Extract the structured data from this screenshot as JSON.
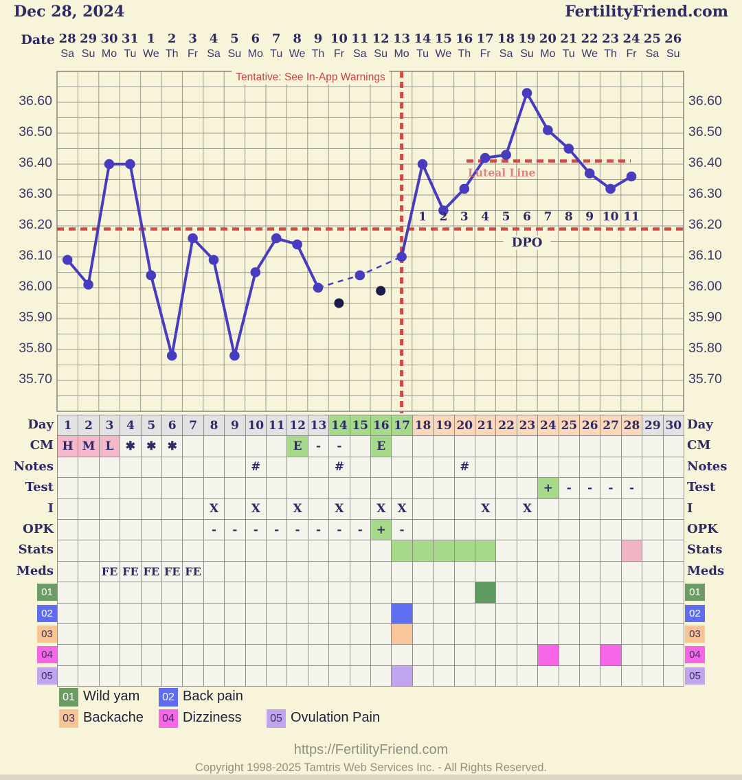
{
  "header": {
    "title": "Dec 28, 2024",
    "brand": "FertilityFriend.com"
  },
  "calendar": {
    "label": "Date",
    "dates": [
      "28",
      "29",
      "30",
      "31",
      "1",
      "2",
      "3",
      "4",
      "5",
      "6",
      "7",
      "8",
      "9",
      "10",
      "11",
      "12",
      "13",
      "14",
      "15",
      "16",
      "17",
      "18",
      "19",
      "20",
      "21",
      "22",
      "23",
      "24",
      "25",
      "26"
    ],
    "weekdays": [
      "Sa",
      "Su",
      "Mo",
      "Tu",
      "We",
      "Th",
      "Fr",
      "Sa",
      "Su",
      "Mo",
      "Tu",
      "We",
      "Th",
      "Fr",
      "Sa",
      "Su",
      "Mo",
      "Tu",
      "We",
      "Th",
      "Fr",
      "Sa",
      "Su",
      "Mo",
      "Tu",
      "We",
      "Th",
      "Fr",
      "Sa",
      "Su"
    ]
  },
  "chart_data": {
    "type": "line",
    "ylim": [
      35.6,
      36.7
    ],
    "y_ticks": [
      "36.60",
      "36.50",
      "36.40",
      "36.30",
      "36.20",
      "36.10",
      "36.00",
      "35.90",
      "35.80",
      "35.70"
    ],
    "x_days_total": 30,
    "days": [
      1,
      2,
      3,
      4,
      5,
      6,
      7,
      8,
      9,
      10,
      11,
      12,
      13,
      14,
      15,
      16,
      17,
      18,
      19,
      20,
      21,
      22,
      23,
      24,
      25,
      26,
      27,
      28
    ],
    "temps": [
      36.09,
      36.01,
      36.4,
      36.4,
      36.04,
      35.78,
      36.16,
      36.09,
      35.78,
      36.05,
      36.16,
      36.14,
      36.0,
      35.95,
      36.04,
      35.99,
      36.1,
      36.4,
      36.25,
      36.32,
      36.42,
      36.43,
      36.63,
      36.51,
      36.45,
      36.37,
      36.32,
      36.36
    ],
    "discarded_days": [
      14,
      16
    ],
    "dashed_connector_days": [
      13,
      15,
      17
    ],
    "coverline_value": 36.19,
    "ovulation_day": 17,
    "luteal_line_value": 36.41,
    "annotations": {
      "tentative": "Tentative: See In-App Warnings",
      "luteal_label": "Luteal Line",
      "dpo_label": "DPO",
      "dpo_numbers": [
        "1",
        "2",
        "3",
        "4",
        "5",
        "6",
        "7",
        "8",
        "9",
        "10",
        "11"
      ],
      "dpo_start_day": 18
    }
  },
  "table": {
    "row_labels": [
      "Day",
      "CM",
      "Notes",
      "Test",
      "I",
      "OPK",
      "Stats",
      "Meds"
    ],
    "day_numbers": [
      "1",
      "2",
      "3",
      "4",
      "5",
      "6",
      "7",
      "8",
      "9",
      "10",
      "11",
      "12",
      "13",
      "14",
      "15",
      "16",
      "17",
      "18",
      "19",
      "20",
      "21",
      "22",
      "23",
      "24",
      "25",
      "26",
      "27",
      "28",
      "29",
      "30"
    ],
    "day_phases": [
      {
        "from": 1,
        "to": 13,
        "phase": "gray"
      },
      {
        "from": 14,
        "to": 17,
        "phase": "green"
      },
      {
        "from": 18,
        "to": 28,
        "phase": "peach"
      },
      {
        "from": 29,
        "to": 30,
        "phase": "gray"
      }
    ],
    "cm": [
      {
        "day": 1,
        "text": "H",
        "bg": "pink"
      },
      {
        "day": 2,
        "text": "M",
        "bg": "pink"
      },
      {
        "day": 3,
        "text": "L",
        "bg": "pink"
      },
      {
        "day": 4,
        "text": "✱"
      },
      {
        "day": 5,
        "text": "✱"
      },
      {
        "day": 6,
        "text": "✱"
      },
      {
        "day": 12,
        "text": "E",
        "bg": "green"
      },
      {
        "day": 13,
        "text": "-"
      },
      {
        "day": 14,
        "text": "-"
      },
      {
        "day": 16,
        "text": "E",
        "bg": "green"
      }
    ],
    "notes": [
      {
        "day": 10,
        "text": "#"
      },
      {
        "day": 14,
        "text": "#"
      },
      {
        "day": 20,
        "text": "#"
      }
    ],
    "test": [
      {
        "day": 24,
        "text": "+",
        "bg": "green"
      },
      {
        "day": 25,
        "text": "-"
      },
      {
        "day": 26,
        "text": "-"
      },
      {
        "day": 27,
        "text": "-"
      },
      {
        "day": 28,
        "text": "-"
      }
    ],
    "intercourse": [
      {
        "day": 8,
        "text": "X"
      },
      {
        "day": 10,
        "text": "X"
      },
      {
        "day": 12,
        "text": "X"
      },
      {
        "day": 14,
        "text": "X"
      },
      {
        "day": 16,
        "text": "X"
      },
      {
        "day": 17,
        "text": "X"
      },
      {
        "day": 21,
        "text": "X"
      },
      {
        "day": 23,
        "text": "X"
      }
    ],
    "opk": [
      {
        "day": 8,
        "text": "-"
      },
      {
        "day": 9,
        "text": "-"
      },
      {
        "day": 10,
        "text": "-"
      },
      {
        "day": 11,
        "text": "-"
      },
      {
        "day": 12,
        "text": "-"
      },
      {
        "day": 13,
        "text": "-"
      },
      {
        "day": 14,
        "text": "-"
      },
      {
        "day": 15,
        "text": "-"
      },
      {
        "day": 16,
        "text": "+",
        "bg": "green"
      },
      {
        "day": 17,
        "text": "-"
      }
    ],
    "stats": [
      {
        "day": 17,
        "bg": "green"
      },
      {
        "day": 18,
        "bg": "green"
      },
      {
        "day": 19,
        "bg": "green"
      },
      {
        "day": 20,
        "bg": "green"
      },
      {
        "day": 21,
        "bg": "green"
      },
      {
        "day": 28,
        "bg": "pinkstats"
      }
    ],
    "meds": [
      {
        "day": 3,
        "text": "FE"
      },
      {
        "day": 4,
        "text": "FE"
      },
      {
        "day": 5,
        "text": "FE"
      },
      {
        "day": 6,
        "text": "FE"
      },
      {
        "day": 7,
        "text": "FE"
      }
    ],
    "symptom_rows": [
      {
        "id": "01",
        "cells": [
          {
            "day": 21
          }
        ]
      },
      {
        "id": "02",
        "cells": [
          {
            "day": 17
          }
        ]
      },
      {
        "id": "03",
        "cells": [
          {
            "day": 17
          }
        ]
      },
      {
        "id": "04",
        "cells": [
          {
            "day": 24
          },
          {
            "day": 27
          }
        ]
      },
      {
        "id": "05",
        "cells": [
          {
            "day": 17
          }
        ]
      }
    ]
  },
  "legend": {
    "items": [
      {
        "id": "01",
        "label": "Wild yam"
      },
      {
        "id": "02",
        "label": "Back pain"
      },
      {
        "id": "03",
        "label": "Backache"
      },
      {
        "id": "04",
        "label": "Dizziness"
      },
      {
        "id": "05",
        "label": "Ovulation Pain"
      }
    ]
  },
  "footer": {
    "url": "https://FertilityFriend.com",
    "copyright": "Copyright 1998-2025 Tamtris Web Services Inc. - All Rights Reserved."
  },
  "colors": {
    "background": "#f8f4d9",
    "navy": "#2e2a66",
    "axis_navy": "#3b3769",
    "line_blue": "#473cbe",
    "discarded_dot": "#1a1a4d",
    "red": "#d04a45",
    "faded_red": "#e0867e",
    "grid": "#9a998e",
    "frame": "#85847a",
    "cell_bg": "#f4f4ed",
    "cell_border": "#90908a",
    "day_gray": "#e2e2e2",
    "green": "#a6da8a",
    "peach": "#fcd8bb",
    "pink": "#f3b9cb",
    "pinkstats": "#f0b4c3",
    "cell01": "#5e9a61",
    "cell02": "#6170f2",
    "cell03": "#f9c79b",
    "cell04": "#f667e7",
    "cell05": "#c0a5ee",
    "badge01": "#6c9c66",
    "badge02": "#5e6df0",
    "badge03": "#f8c493",
    "badge04": "#f667e7",
    "badge05": "#c0a5ee",
    "legend_text": "#20203a",
    "footer_gray": "#8f8e81"
  }
}
